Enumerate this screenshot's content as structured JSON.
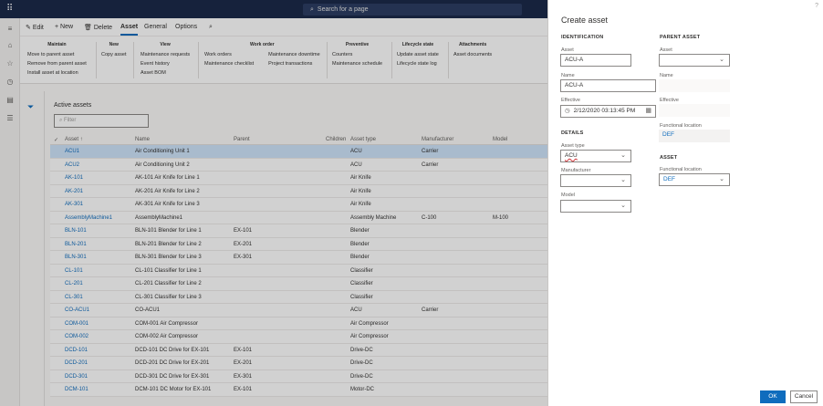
{
  "topbar": {
    "waffle_icon": "waffle-icon",
    "search_placeholder": "Search for a page",
    "search_icon": "search-icon"
  },
  "rail": {
    "items": [
      "hamburger-icon",
      "home-icon",
      "star-icon",
      "clock-icon",
      "workspace-icon",
      "list-icon"
    ]
  },
  "action_pane": {
    "edit": "Edit",
    "new": "New",
    "delete": "Delete",
    "tabs": [
      "Asset",
      "General",
      "Options"
    ],
    "active_tab": "Asset"
  },
  "ribbon": {
    "groups": [
      {
        "title": "Maintain",
        "items": [
          "Move to parent asset",
          "Remove from parent asset",
          "Install asset at location"
        ]
      },
      {
        "title": "New",
        "items": [
          "Copy asset"
        ]
      },
      {
        "title": "View",
        "items": [
          "Maintenance requests",
          "Event history",
          "Asset BOM"
        ]
      },
      {
        "title": "Work order",
        "col1": [
          "Work orders",
          "Maintenance checklist"
        ],
        "col2": [
          "Maintenance downtime",
          "Project transactions"
        ]
      },
      {
        "title": "Preventive",
        "items": [
          "Counters",
          "Maintenance schedule"
        ]
      },
      {
        "title": "Lifecycle state",
        "items": [
          "Update asset state",
          "Lifecycle state log"
        ]
      },
      {
        "title": "Attachments",
        "items": [
          "Asset documents"
        ]
      }
    ]
  },
  "grid": {
    "title": "Active assets",
    "filter_placeholder": "Filter",
    "columns": [
      "Asset",
      "Name",
      "Parent",
      "Children",
      "Asset type",
      "Manufacturer",
      "Model"
    ],
    "sort_indicator": "↑",
    "rows": [
      {
        "asset": "ACU1",
        "name": "Air Conditioning Unit 1",
        "parent": "",
        "type": "ACU",
        "manufacturer": "Carrier",
        "model": ""
      },
      {
        "asset": "ACU2",
        "name": "Air Conditioning Unit 2",
        "parent": "",
        "type": "ACU",
        "manufacturer": "Carrier",
        "model": ""
      },
      {
        "asset": "AK-101",
        "name": "AK-101 Air Knife for Line 1",
        "parent": "",
        "type": "Air Knife",
        "manufacturer": "",
        "model": ""
      },
      {
        "asset": "AK-201",
        "name": "AK-201 Air Knife for Line 2",
        "parent": "",
        "type": "Air Knife",
        "manufacturer": "",
        "model": ""
      },
      {
        "asset": "AK-301",
        "name": "AK-301 Air Knife for Line 3",
        "parent": "",
        "type": "Air Knife",
        "manufacturer": "",
        "model": ""
      },
      {
        "asset": "AssemblyMachine1",
        "name": "AssemblyMachine1",
        "parent": "",
        "type": "Assembly Machine",
        "manufacturer": "C-100",
        "model": "M-100"
      },
      {
        "asset": "BLN-101",
        "name": "BLN-101 Blender for Line 1",
        "parent": "EX-101",
        "type": "Blender",
        "manufacturer": "",
        "model": ""
      },
      {
        "asset": "BLN-201",
        "name": "BLN-201 Blender for Line 2",
        "parent": "EX-201",
        "type": "Blender",
        "manufacturer": "",
        "model": ""
      },
      {
        "asset": "BLN-301",
        "name": "BLN-301 Blender for Line 3",
        "parent": "EX-301",
        "type": "Blender",
        "manufacturer": "",
        "model": ""
      },
      {
        "asset": "CL-101",
        "name": "CL-101 Classifier for Line 1",
        "parent": "",
        "type": "Classifier",
        "manufacturer": "",
        "model": ""
      },
      {
        "asset": "CL-201",
        "name": "CL-201 Classifier for Line 2",
        "parent": "",
        "type": "Classifier",
        "manufacturer": "",
        "model": ""
      },
      {
        "asset": "CL-301",
        "name": "CL-301 Classifier for Line 3",
        "parent": "",
        "type": "Classifier",
        "manufacturer": "",
        "model": ""
      },
      {
        "asset": "CO-ACU1",
        "name": "CO-ACU1",
        "parent": "",
        "type": "ACU",
        "manufacturer": "Carrier",
        "model": ""
      },
      {
        "asset": "COM-001",
        "name": "COM-001 Air Compressor",
        "parent": "",
        "type": "Air Compressor",
        "manufacturer": "",
        "model": ""
      },
      {
        "asset": "COM-002",
        "name": "COM-002 Air Compressor",
        "parent": "",
        "type": "Air Compressor",
        "manufacturer": "",
        "model": ""
      },
      {
        "asset": "DCD-101",
        "name": "DCD-101 DC Drive for EX-101",
        "parent": "EX-101",
        "type": "Drive-DC",
        "manufacturer": "",
        "model": ""
      },
      {
        "asset": "DCD-201",
        "name": "DCD-201 DC Drive for EX-201",
        "parent": "EX-201",
        "type": "Drive-DC",
        "manufacturer": "",
        "model": ""
      },
      {
        "asset": "DCD-301",
        "name": "DCD-301 DC Drive for EX-301",
        "parent": "EX-301",
        "type": "Drive-DC",
        "manufacturer": "",
        "model": ""
      },
      {
        "asset": "DCM-101",
        "name": "DCM-101 DC Motor for EX-101",
        "parent": "EX-101",
        "type": "Motor-DC",
        "manufacturer": "",
        "model": ""
      }
    ]
  },
  "panel": {
    "title": "Create asset",
    "help": "?",
    "identification": {
      "heading": "IDENTIFICATION",
      "asset_label": "Asset",
      "asset_value": "ACU-A",
      "name_label": "Name",
      "name_value": "ACU-A",
      "effective_label": "Effective",
      "effective_value": "2/12/2020 03:13:45 PM"
    },
    "parent_asset": {
      "heading": "PARENT ASSET",
      "asset_label": "Asset",
      "asset_value": "",
      "name_label": "Name",
      "name_value": "",
      "effective_label": "Effective",
      "effective_value": "",
      "functional_location_label": "Functional location",
      "functional_location_value": "DEF"
    },
    "details": {
      "heading": "DETAILS",
      "asset_type_label": "Asset type",
      "asset_type_value": "ACU",
      "manufacturer_label": "Manufacturer",
      "manufacturer_value": "",
      "model_label": "Model",
      "model_value": ""
    },
    "asset": {
      "heading": "ASSET",
      "functional_location_label": "Functional location",
      "functional_location_value": "DEF"
    },
    "ok_label": "OK",
    "cancel_label": "Cancel"
  },
  "colors": {
    "accent": "#0f6cbd",
    "topbar": "#1b2a4a",
    "selected_row": "#cfe4fa"
  }
}
